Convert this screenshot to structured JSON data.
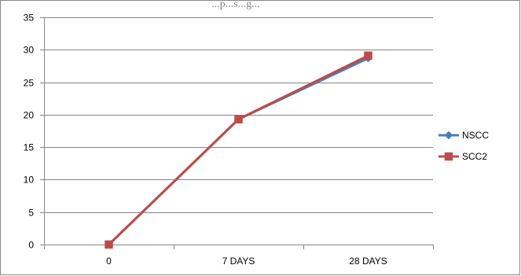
{
  "chart_data": {
    "type": "line",
    "title": "...p...s...g...",
    "categories": [
      "0",
      "7 DAYS",
      "28 DAYS"
    ],
    "series": [
      {
        "name": "NSCC",
        "values": [
          0,
          19.3,
          28.7
        ],
        "color": "#4a7ebb",
        "marker": "diamond"
      },
      {
        "name": "SCC2",
        "values": [
          0,
          19.3,
          29.1
        ],
        "color": "#be4b48",
        "marker": "square"
      }
    ],
    "ylim": [
      0,
      35
    ],
    "yticks": [
      0,
      5,
      10,
      15,
      20,
      25,
      30,
      35
    ],
    "grid": true,
    "legend": "right"
  }
}
